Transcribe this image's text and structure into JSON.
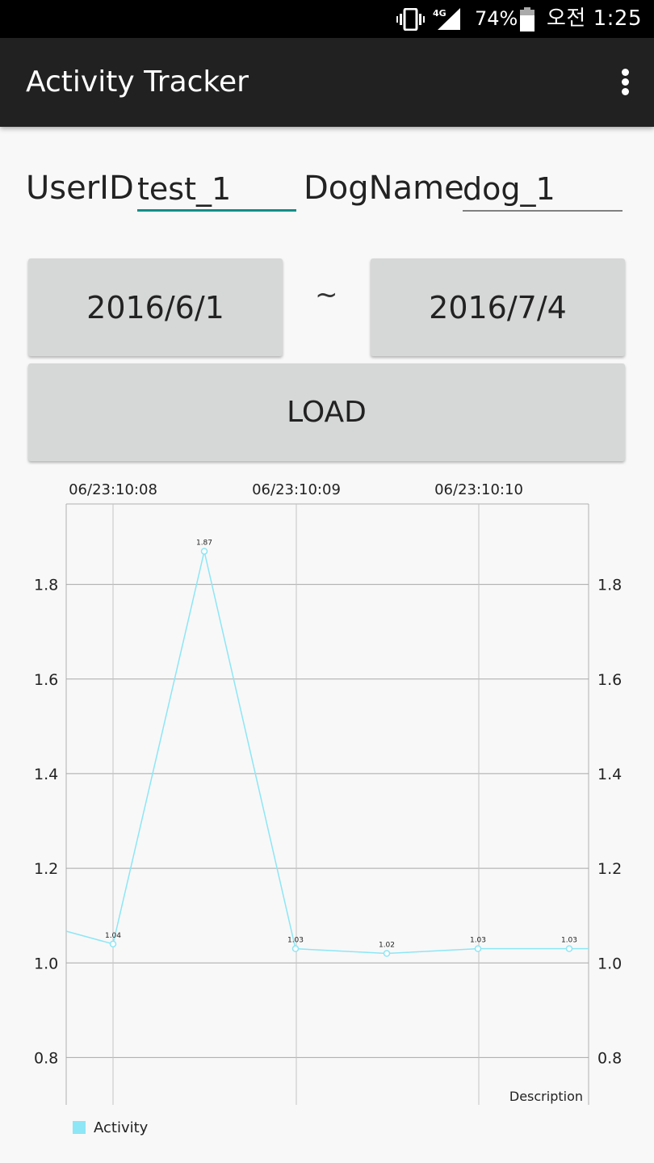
{
  "status_bar": {
    "battery": "74%",
    "time": "오전 1:25",
    "network": "4G"
  },
  "app_bar": {
    "title": "Activity Tracker",
    "overflow_icon": "more-vert-icon"
  },
  "form": {
    "user_id_label": "UserID",
    "user_id_value": "test_1",
    "dog_name_label": "DogName",
    "dog_name_value": "dog_1"
  },
  "date_range": {
    "start": "2016/6/1",
    "separator": "~",
    "end": "2016/7/4"
  },
  "load_button": "LOAD",
  "colors": {
    "accent": "#138f88",
    "series": "#8de6f5",
    "app_bar": "#212121",
    "button": "#d6d7d7"
  },
  "chart_data": {
    "type": "line",
    "x_tick_labels": [
      "06/23:10:08",
      "06/23:10:09",
      "06/23:10:10"
    ],
    "y_ticks": [
      0.8,
      1.0,
      1.2,
      1.4,
      1.6,
      1.8
    ],
    "y_tick_labels": [
      "0.8",
      "1.0",
      "1.2",
      "1.4",
      "1.6",
      "1.8"
    ],
    "ylim": [
      0.7,
      1.97
    ],
    "right_axis": true,
    "grid": true,
    "description": "Description",
    "legend_position": "bottom-left",
    "series": [
      {
        "name": "Activity",
        "color": "#8de6f5",
        "values": [
          1.04,
          1.87,
          1.03,
          1.02,
          1.03,
          1.03
        ],
        "value_labels": [
          "1.04",
          "1.87",
          "1.03",
          "1.02",
          "1.03",
          "1.03"
        ],
        "offscreen_left_value": 1.067
      }
    ]
  }
}
